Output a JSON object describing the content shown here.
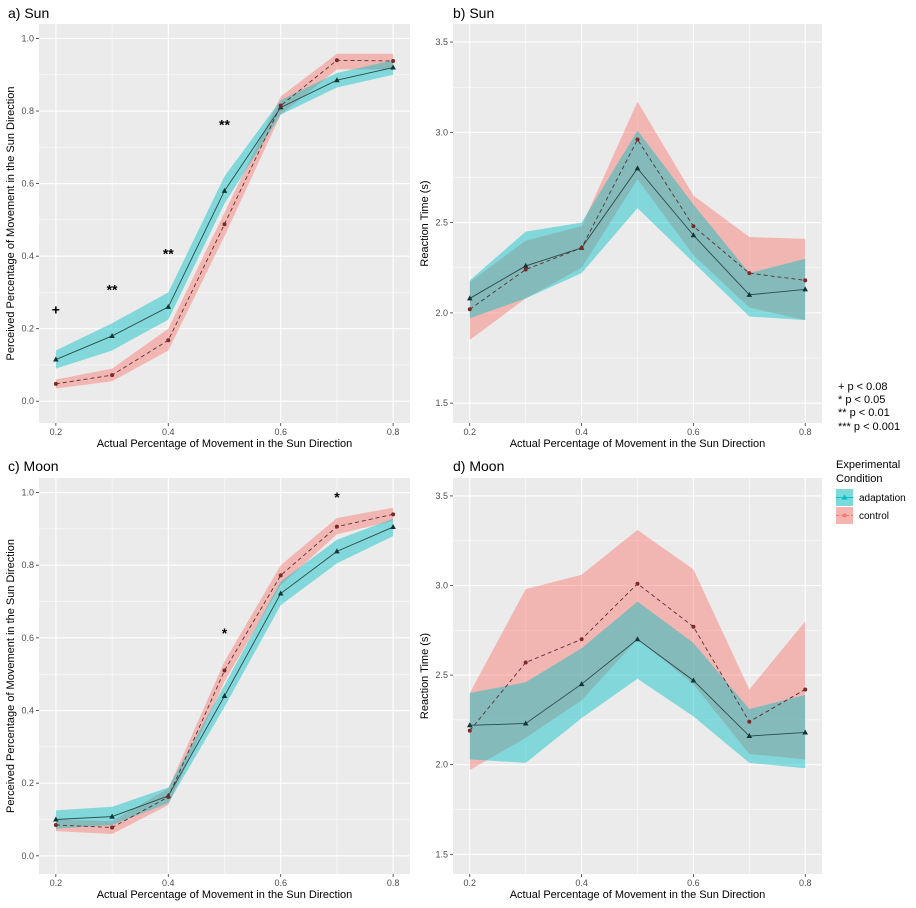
{
  "colors": {
    "adaptation": "#00BFC4",
    "control": "#F8766D",
    "panel_bg": "#EBEBEB",
    "grid": "#FFFFFF"
  },
  "chart_data": [
    {
      "type": "line",
      "title": "a) Sun",
      "xlabel": "Actual Percentage of Movement in the Sun Direction",
      "ylabel": "Perceived Percentage of Movement in the Sun Direction",
      "x": [
        0.2,
        0.3,
        0.4,
        0.5,
        0.6,
        0.7,
        0.8
      ],
      "x_ticks": [
        "0.2",
        "0.4",
        "0.6",
        "0.8"
      ],
      "y_ticks": [
        "0.0",
        "0.2",
        "0.4",
        "0.6",
        "0.8",
        "1.0"
      ],
      "xlim": [
        0.17,
        0.83
      ],
      "ylim": [
        -0.06,
        1.04
      ],
      "series": [
        {
          "name": "adaptation",
          "values": [
            0.115,
            0.18,
            0.26,
            0.58,
            0.81,
            0.885,
            0.92
          ],
          "lower": [
            0.09,
            0.14,
            0.225,
            0.545,
            0.79,
            0.865,
            0.9
          ],
          "upper": [
            0.14,
            0.215,
            0.3,
            0.62,
            0.83,
            0.905,
            0.94
          ]
        },
        {
          "name": "control",
          "values": [
            0.048,
            0.072,
            0.168,
            0.488,
            0.815,
            0.94,
            0.938
          ],
          "lower": [
            0.035,
            0.055,
            0.14,
            0.455,
            0.79,
            0.915,
            0.915
          ],
          "upper": [
            0.06,
            0.09,
            0.2,
            0.52,
            0.84,
            0.958,
            0.958
          ]
        }
      ],
      "annotations": [
        {
          "x": 0.2,
          "y": 0.25,
          "text": "+"
        },
        {
          "x": 0.3,
          "y": 0.305,
          "text": "**"
        },
        {
          "x": 0.4,
          "y": 0.405,
          "text": "**"
        },
        {
          "x": 0.5,
          "y": 0.76,
          "text": "**"
        }
      ]
    },
    {
      "type": "line",
      "title": "b) Sun",
      "xlabel": "Actual Percentage of Movement in the Sun Direction",
      "ylabel": "Reaction Time (s)",
      "x": [
        0.2,
        0.3,
        0.4,
        0.5,
        0.6,
        0.7,
        0.8
      ],
      "x_ticks": [
        "0.2",
        "0.4",
        "0.6",
        "0.8"
      ],
      "y_ticks": [
        "1.5",
        "2.0",
        "2.5",
        "3.0",
        "3.5"
      ],
      "xlim": [
        0.17,
        0.83
      ],
      "ylim": [
        1.39,
        3.6
      ],
      "series": [
        {
          "name": "adaptation",
          "values": [
            2.08,
            2.26,
            2.36,
            2.8,
            2.43,
            2.1,
            2.13
          ],
          "lower": [
            1.97,
            2.08,
            2.22,
            2.58,
            2.28,
            1.98,
            1.96
          ],
          "upper": [
            2.18,
            2.45,
            2.5,
            3.01,
            2.6,
            2.22,
            2.3
          ]
        },
        {
          "name": "control",
          "values": [
            2.02,
            2.24,
            2.36,
            2.96,
            2.48,
            2.22,
            2.18
          ],
          "lower": [
            1.85,
            2.08,
            2.25,
            2.74,
            2.32,
            2.03,
            1.96
          ],
          "upper": [
            2.17,
            2.4,
            2.48,
            3.17,
            2.65,
            2.42,
            2.41
          ]
        }
      ],
      "annotations": []
    },
    {
      "type": "line",
      "title": "c) Moon",
      "xlabel": "Actual Percentage of Movement in the Sun Direction",
      "ylabel": "Perceived Percentage of Movement in the Sun Direction",
      "x": [
        0.2,
        0.3,
        0.4,
        0.5,
        0.6,
        0.7,
        0.8
      ],
      "x_ticks": [
        "0.2",
        "0.4",
        "0.6",
        "0.8"
      ],
      "y_ticks": [
        "0.0",
        "0.2",
        "0.4",
        "0.6",
        "0.8",
        "1.0"
      ],
      "xlim": [
        0.17,
        0.83
      ],
      "ylim": [
        -0.05,
        1.04
      ],
      "series": [
        {
          "name": "adaptation",
          "values": [
            0.1,
            0.108,
            0.165,
            0.44,
            0.722,
            0.838,
            0.905
          ],
          "lower": [
            0.075,
            0.085,
            0.145,
            0.41,
            0.69,
            0.805,
            0.88
          ],
          "upper": [
            0.125,
            0.135,
            0.188,
            0.47,
            0.755,
            0.87,
            0.928
          ]
        },
        {
          "name": "control",
          "values": [
            0.085,
            0.078,
            0.162,
            0.51,
            0.772,
            0.906,
            0.94
          ],
          "lower": [
            0.068,
            0.06,
            0.14,
            0.48,
            0.745,
            0.885,
            0.922
          ],
          "upper": [
            0.1,
            0.095,
            0.185,
            0.535,
            0.8,
            0.93,
            0.958
          ]
        }
      ],
      "annotations": [
        {
          "x": 0.5,
          "y": 0.61,
          "text": "*"
        },
        {
          "x": 0.7,
          "y": 0.985,
          "text": "*"
        }
      ]
    },
    {
      "type": "line",
      "title": "d) Moon",
      "xlabel": "Actual Percentage of Movement in the Sun Direction",
      "ylabel": "Reaction Time (s)",
      "x": [
        0.2,
        0.3,
        0.4,
        0.5,
        0.6,
        0.7,
        0.8
      ],
      "x_ticks": [
        "0.2",
        "0.4",
        "0.6",
        "0.8"
      ],
      "y_ticks": [
        "1.5",
        "2.0",
        "2.5",
        "3.0",
        "3.5"
      ],
      "xlim": [
        0.17,
        0.83
      ],
      "ylim": [
        1.39,
        3.6
      ],
      "series": [
        {
          "name": "adaptation",
          "values": [
            2.22,
            2.23,
            2.45,
            2.7,
            2.47,
            2.16,
            2.18
          ],
          "lower": [
            2.03,
            2.01,
            2.26,
            2.48,
            2.27,
            2.01,
            1.98
          ],
          "upper": [
            2.4,
            2.46,
            2.65,
            2.91,
            2.68,
            2.31,
            2.39
          ]
        },
        {
          "name": "control",
          "values": [
            2.19,
            2.57,
            2.7,
            3.01,
            2.77,
            2.24,
            2.42
          ],
          "lower": [
            1.97,
            2.15,
            2.36,
            2.7,
            2.45,
            2.06,
            2.03
          ],
          "upper": [
            2.4,
            2.98,
            3.06,
            3.31,
            3.09,
            2.42,
            2.8
          ]
        }
      ],
      "annotations": []
    }
  ],
  "significance_legend": [
    "+  p < 0.08",
    "*   p < 0.05",
    "**  p < 0.01",
    "*** p < 0.001"
  ],
  "legend": {
    "title_line1": "Experimental",
    "title_line2": "Condition",
    "items": [
      "adaptation",
      "control"
    ]
  }
}
